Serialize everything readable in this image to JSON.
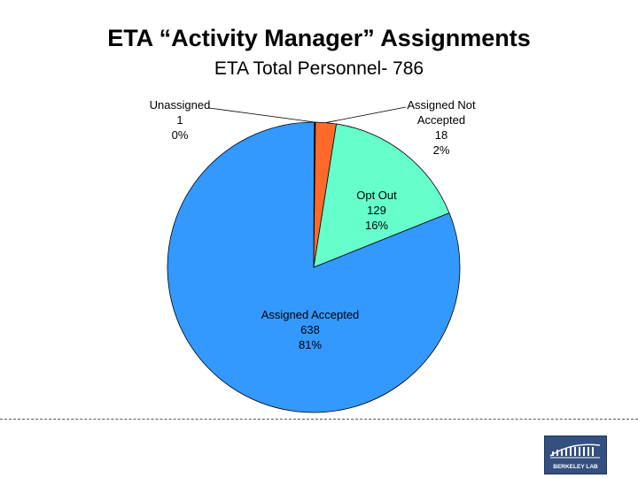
{
  "title": "ETA “Activity Manager” Assignments",
  "subtitle": "ETA Total Personnel- 786",
  "chart_data": {
    "type": "pie",
    "title": "ETA “Activity Manager” Assignments",
    "subtitle": "ETA Total Personnel- 786",
    "total": 786,
    "slices": [
      {
        "label": "Unassigned",
        "value": 1,
        "percent": "0%",
        "color": "#1a1a1a"
      },
      {
        "label": "Assigned Not Accepted",
        "label_lines": [
          "Assigned Not",
          "Accepted"
        ],
        "value": 18,
        "percent": "2%",
        "color": "#ff6a2b"
      },
      {
        "label": "Opt Out",
        "value": 129,
        "percent": "16%",
        "color": "#66ffcc"
      },
      {
        "label": "Assigned Accepted",
        "value": 638,
        "percent": "81%",
        "color": "#3399ff"
      }
    ]
  },
  "logo": {
    "text": "BERKELEY LAB",
    "color": "#33507f"
  }
}
